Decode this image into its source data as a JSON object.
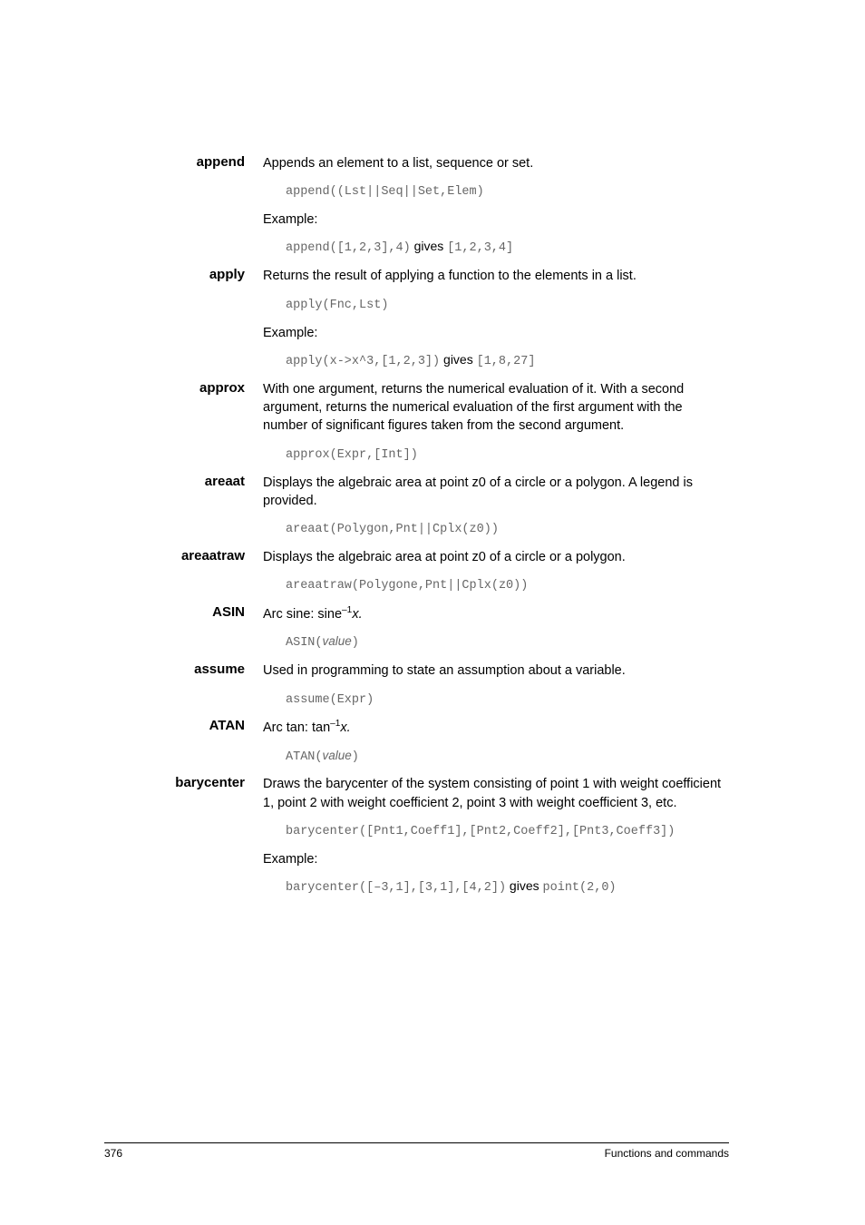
{
  "entries": [
    {
      "term": "append",
      "def": "Appends an element to a list, sequence or set.",
      "code1": "append((Lst||Seq||Set,Elem)",
      "example_label": "Example:",
      "example_code_pre": "append([1,2,3],4)",
      "gives": " gives ",
      "example_code_post": "[1,2,3,4]"
    },
    {
      "term": "apply",
      "def": "Returns the result of applying a function to the elements in a list.",
      "code1": "apply(Fnc,Lst)",
      "example_label": "Example:",
      "example_code_pre": "apply(x->x^3,[1,2,3])",
      "gives": " gives ",
      "example_code_post": "[1,8,27]"
    },
    {
      "term": "approx",
      "def": "With one argument, returns the numerical evaluation of it. With a second argument, returns the numerical evaluation of the first argument with the number of significant figures taken from the second argument.",
      "code1": "approx(Expr,[Int])"
    },
    {
      "term": "areaat",
      "def": "Displays the algebraic area at point z0 of a circle or a polygon. A legend is provided.",
      "code1": "areaat(Polygon,Pnt||Cplx(z0))"
    },
    {
      "term": "areaatraw",
      "def": "Displays the algebraic area at point z0 of a circle or a polygon.",
      "code1": "areaatraw(Polygone,Pnt||Cplx(z0))"
    },
    {
      "term": "ASIN",
      "def_pre": "Arc sine: sine",
      "def_sup": "–1",
      "def_post": "x.",
      "code1": "ASIN(value)"
    },
    {
      "term": "assume",
      "def": "Used in programming to state an assumption about a variable.",
      "code1": "assume(Expr)"
    },
    {
      "term": "ATAN",
      "def_pre": "Arc tan: tan",
      "def_sup": "–1",
      "def_post": "x.",
      "code1": "ATAN(value)"
    },
    {
      "term": "barycenter",
      "def": "Draws the barycenter of the system consisting of point 1 with weight coefficient 1, point 2 with weight coefficient 2, point 3 with weight coefficient 3, etc.",
      "code1": "barycenter([Pnt1,Coeff1],[Pnt2,Coeff2],[Pnt3,Coeff3])",
      "example_label": "Example:",
      "example_code_pre": "barycenter([–3,1],[3,1],[4,2])",
      "gives": "  gives ",
      "example_code_post": "point(2,0)"
    }
  ],
  "footer": {
    "page": "376",
    "title": "Functions and commands"
  }
}
